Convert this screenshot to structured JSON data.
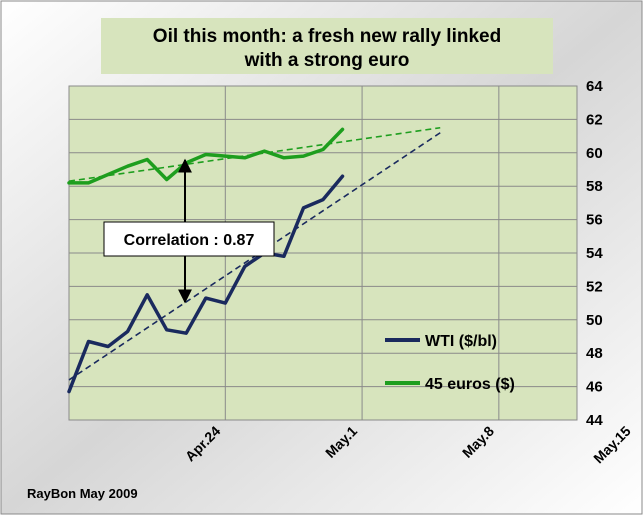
{
  "chart_data": {
    "type": "line",
    "title_lines": [
      "Oil this month: a fresh new rally linked",
      "with a strong euro"
    ],
    "credit": "RayBon May  2009",
    "annotation": "Correlation : 0.87",
    "ylim": [
      44,
      64
    ],
    "yticks": [
      "44",
      "46",
      "48",
      "50",
      "52",
      "54",
      "56",
      "58",
      "60",
      "62",
      "64"
    ],
    "xlim": [
      0,
      26
    ],
    "x_ticks": [
      {
        "label": "Apr.24",
        "x": 8
      },
      {
        "label": "May.1",
        "x": 15
      },
      {
        "label": "May.8",
        "x": 22
      },
      {
        "label": "May.15",
        "x": 29
      }
    ],
    "grid": true,
    "legend_position": "lower-right",
    "series": [
      {
        "name": "WTI ($/bl)",
        "color": "#1a2a5e",
        "x": [
          0,
          1,
          2,
          3,
          4,
          5,
          6,
          7,
          8,
          9,
          10,
          11,
          12,
          13,
          14
        ],
        "y": [
          45.7,
          48.7,
          48.4,
          49.3,
          51.5,
          49.4,
          49.2,
          51.3,
          51.0,
          53.2,
          54.0,
          53.8,
          56.7,
          57.2,
          58.6
        ]
      },
      {
        "name": "45 euros ($)",
        "color": "#1e9e1e",
        "x": [
          0,
          1,
          2,
          3,
          4,
          5,
          6,
          7,
          8,
          9,
          10,
          11,
          12,
          13,
          14
        ],
        "y": [
          58.2,
          58.2,
          58.7,
          59.2,
          59.6,
          58.4,
          59.4,
          59.9,
          59.8,
          59.7,
          60.1,
          59.7,
          59.8,
          60.2,
          61.4
        ]
      }
    ],
    "trendlines": [
      {
        "color": "#1a2a5e",
        "from": [
          0,
          46.4
        ],
        "to": [
          19,
          61.2
        ]
      },
      {
        "color": "#1e9e1e",
        "from": [
          0,
          58.3
        ],
        "to": [
          19,
          61.5
        ]
      }
    ]
  }
}
